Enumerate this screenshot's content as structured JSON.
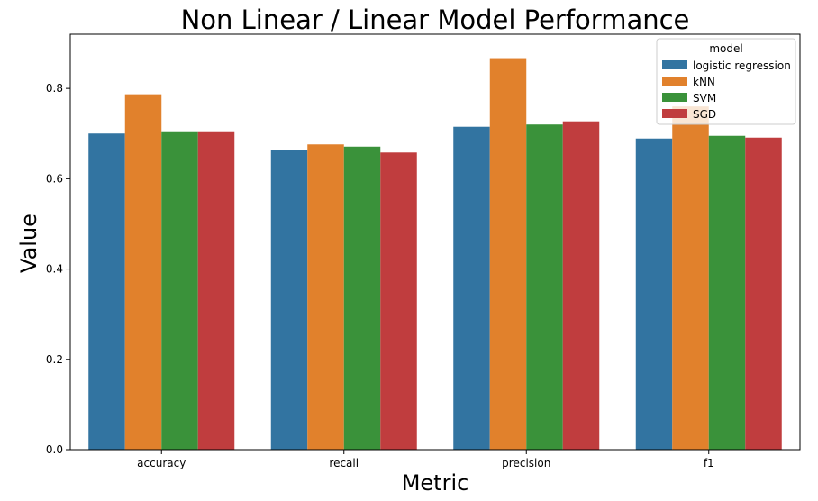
{
  "chart_data": {
    "type": "bar",
    "title": "Non Linear / Linear Model Performance",
    "xlabel": "Metric",
    "ylabel": "Value",
    "categories": [
      "accuracy",
      "recall",
      "precision",
      "f1"
    ],
    "ylim": [
      0,
      0.92
    ],
    "yticks": [
      "0.0",
      "0.2",
      "0.4",
      "0.6",
      "0.8"
    ],
    "grid": false,
    "legend": {
      "title": "model",
      "placement": "top-right"
    },
    "series": [
      {
        "name": "logistic regression",
        "color": "#3274a1",
        "values": [
          0.7,
          0.664,
          0.715,
          0.689
        ]
      },
      {
        "name": "kNN",
        "color": "#e1812c",
        "values": [
          0.787,
          0.676,
          0.867,
          0.76
        ]
      },
      {
        "name": "SVM",
        "color": "#3a923a",
        "values": [
          0.705,
          0.671,
          0.72,
          0.695
        ]
      },
      {
        "name": "SGD",
        "color": "#c03d3e",
        "values": [
          0.705,
          0.658,
          0.727,
          0.691
        ]
      }
    ]
  }
}
